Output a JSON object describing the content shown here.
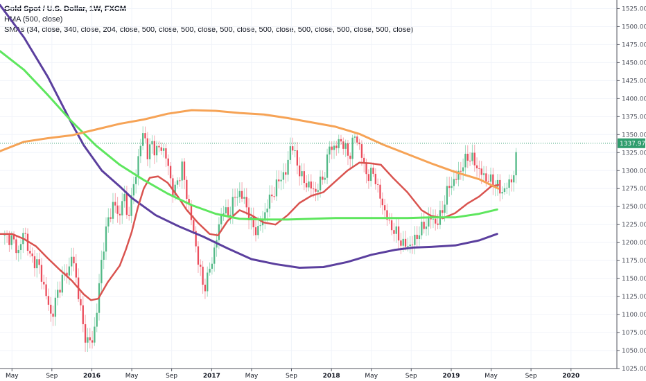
{
  "legend": {
    "title": "Gold Spot / U.S. Dollar, 1W, FXCM",
    "line2": "HMA (500, close)",
    "line3": "SMAs (34, close, 340, close, 204, close, 500, close, 500, close, 500, close, 500, close, 500, close, 500, close, 500, close)"
  },
  "colors": {
    "up": "#53b987",
    "down": "#eb4d5c",
    "wick_up": "#9fdcc0",
    "wick_down": "#f4a6ae",
    "hma": "#5b3f9e",
    "sma34": "#d9534f",
    "sma204": "#5ee65e",
    "sma340": "#f6a356",
    "price_tag": "#2f9d6d"
  },
  "price_label": "1337.97",
  "chart_data": {
    "type": "line",
    "title": "Gold Spot / U.S. Dollar, 1W, FXCM",
    "y_axis_side": "right",
    "ylim": [
      1025,
      1537
    ],
    "y_ticks": [
      "1025.00",
      "1050.00",
      "1075.00",
      "1100.00",
      "1125.00",
      "1150.00",
      "1175.00",
      "1200.00",
      "1225.00",
      "1250.00",
      "1275.00",
      "1300.00",
      "1325.00",
      "1350.00",
      "1375.00",
      "1400.00",
      "1425.00",
      "1450.00",
      "1475.00",
      "1500.00",
      "1525.00"
    ],
    "x_ticks": [
      {
        "label": "May",
        "t": 0.0
      },
      {
        "label": "Sep",
        "t": 0.333
      },
      {
        "label": "2016",
        "t": 0.667
      },
      {
        "label": "May",
        "t": 1.0
      },
      {
        "label": "Sep",
        "t": 1.333
      },
      {
        "label": "2017",
        "t": 1.667
      },
      {
        "label": "May",
        "t": 2.0
      },
      {
        "label": "Sep",
        "t": 2.333
      },
      {
        "label": "2018",
        "t": 2.667
      },
      {
        "label": "May",
        "t": 3.0
      },
      {
        "label": "Sep",
        "t": 3.333
      },
      {
        "label": "2019",
        "t": 3.667
      },
      {
        "label": "May",
        "t": 4.0
      },
      {
        "label": "Sep",
        "t": 4.333
      },
      {
        "label": "2020",
        "t": 4.667
      }
    ],
    "x_domain": [
      -0.1,
      5.05
    ],
    "last_price": 1337.97,
    "close_anchors": [
      [
        -0.08,
        1210
      ],
      [
        0.0,
        1205
      ],
      [
        0.06,
        1185
      ],
      [
        0.1,
        1220
      ],
      [
        0.15,
        1180
      ],
      [
        0.22,
        1170
      ],
      [
        0.28,
        1130
      ],
      [
        0.33,
        1095
      ],
      [
        0.38,
        1130
      ],
      [
        0.42,
        1150
      ],
      [
        0.48,
        1165
      ],
      [
        0.5,
        1185
      ],
      [
        0.55,
        1135
      ],
      [
        0.6,
        1075
      ],
      [
        0.64,
        1060
      ],
      [
        0.67,
        1065
      ],
      [
        0.7,
        1090
      ],
      [
        0.75,
        1180
      ],
      [
        0.8,
        1230
      ],
      [
        0.85,
        1255
      ],
      [
        0.9,
        1235
      ],
      [
        0.93,
        1275
      ],
      [
        0.96,
        1235
      ],
      [
        1.0,
        1260
      ],
      [
        1.03,
        1295
      ],
      [
        1.06,
        1320
      ],
      [
        1.1,
        1360
      ],
      [
        1.13,
        1320
      ],
      [
        1.17,
        1340
      ],
      [
        1.2,
        1325
      ],
      [
        1.25,
        1335
      ],
      [
        1.3,
        1310
      ],
      [
        1.35,
        1265
      ],
      [
        1.38,
        1285
      ],
      [
        1.42,
        1305
      ],
      [
        1.46,
        1265
      ],
      [
        1.5,
        1230
      ],
      [
        1.55,
        1180
      ],
      [
        1.6,
        1135
      ],
      [
        1.63,
        1150
      ],
      [
        1.67,
        1175
      ],
      [
        1.72,
        1215
      ],
      [
        1.76,
        1250
      ],
      [
        1.8,
        1235
      ],
      [
        1.85,
        1260
      ],
      [
        1.9,
        1270
      ],
      [
        1.95,
        1255
      ],
      [
        2.0,
        1225
      ],
      [
        2.05,
        1215
      ],
      [
        2.1,
        1235
      ],
      [
        2.15,
        1260
      ],
      [
        2.2,
        1275
      ],
      [
        2.25,
        1295
      ],
      [
        2.28,
        1290
      ],
      [
        2.33,
        1340
      ],
      [
        2.38,
        1310
      ],
      [
        2.43,
        1285
      ],
      [
        2.48,
        1280
      ],
      [
        2.53,
        1270
      ],
      [
        2.58,
        1285
      ],
      [
        2.62,
        1300
      ],
      [
        2.65,
        1335
      ],
      [
        2.7,
        1330
      ],
      [
        2.74,
        1345
      ],
      [
        2.78,
        1330
      ],
      [
        2.82,
        1320
      ],
      [
        2.86,
        1350
      ],
      [
        2.9,
        1335
      ],
      [
        2.94,
        1305
      ],
      [
        2.98,
        1290
      ],
      [
        3.02,
        1300
      ],
      [
        3.05,
        1275
      ],
      [
        3.1,
        1250
      ],
      [
        3.15,
        1225
      ],
      [
        3.2,
        1215
      ],
      [
        3.25,
        1200
      ],
      [
        3.3,
        1195
      ],
      [
        3.35,
        1200
      ],
      [
        3.4,
        1215
      ],
      [
        3.45,
        1225
      ],
      [
        3.5,
        1235
      ],
      [
        3.55,
        1225
      ],
      [
        3.6,
        1250
      ],
      [
        3.65,
        1280
      ],
      [
        3.7,
        1285
      ],
      [
        3.72,
        1295
      ],
      [
        3.76,
        1305
      ],
      [
        3.8,
        1320
      ],
      [
        3.85,
        1315
      ],
      [
        3.9,
        1300
      ],
      [
        3.95,
        1290
      ],
      [
        4.0,
        1285
      ],
      [
        4.05,
        1280
      ],
      [
        4.08,
        1270
      ],
      [
        4.12,
        1275
      ],
      [
        4.16,
        1285
      ],
      [
        4.2,
        1300
      ],
      [
        4.22,
        1337.97
      ]
    ],
    "series": [
      {
        "name": "HMA (500, close)",
        "key": "hma",
        "points": [
          [
            -0.1,
            1530
          ],
          [
            0.1,
            1485
          ],
          [
            0.3,
            1430
          ],
          [
            0.5,
            1365
          ],
          [
            0.6,
            1335
          ],
          [
            0.75,
            1300
          ],
          [
            0.9,
            1278
          ],
          [
            1.0,
            1262
          ],
          [
            1.2,
            1238
          ],
          [
            1.4,
            1222
          ],
          [
            1.6,
            1208
          ],
          [
            1.8,
            1192
          ],
          [
            2.0,
            1177
          ],
          [
            2.2,
            1170
          ],
          [
            2.4,
            1165
          ],
          [
            2.6,
            1166
          ],
          [
            2.8,
            1173
          ],
          [
            3.0,
            1183
          ],
          [
            3.2,
            1190
          ],
          [
            3.35,
            1193
          ],
          [
            3.5,
            1194
          ],
          [
            3.7,
            1196
          ],
          [
            3.9,
            1203
          ],
          [
            4.05,
            1212
          ]
        ]
      },
      {
        "name": "SMA 34",
        "key": "sma34",
        "points": [
          [
            -0.1,
            1212
          ],
          [
            0.0,
            1212
          ],
          [
            0.1,
            1205
          ],
          [
            0.2,
            1195
          ],
          [
            0.3,
            1178
          ],
          [
            0.4,
            1162
          ],
          [
            0.5,
            1147
          ],
          [
            0.6,
            1128
          ],
          [
            0.66,
            1120
          ],
          [
            0.72,
            1122
          ],
          [
            0.8,
            1145
          ],
          [
            0.9,
            1168
          ],
          [
            0.95,
            1190
          ],
          [
            1.0,
            1215
          ],
          [
            1.05,
            1248
          ],
          [
            1.1,
            1275
          ],
          [
            1.15,
            1290
          ],
          [
            1.22,
            1292
          ],
          [
            1.3,
            1283
          ],
          [
            1.38,
            1265
          ],
          [
            1.46,
            1245
          ],
          [
            1.55,
            1228
          ],
          [
            1.65,
            1212
          ],
          [
            1.72,
            1210
          ],
          [
            1.8,
            1230
          ],
          [
            1.9,
            1245
          ],
          [
            2.0,
            1238
          ],
          [
            2.1,
            1228
          ],
          [
            2.2,
            1225
          ],
          [
            2.3,
            1238
          ],
          [
            2.4,
            1255
          ],
          [
            2.5,
            1265
          ],
          [
            2.6,
            1270
          ],
          [
            2.7,
            1285
          ],
          [
            2.8,
            1300
          ],
          [
            2.9,
            1311
          ],
          [
            3.0,
            1310
          ],
          [
            3.08,
            1308
          ],
          [
            3.18,
            1290
          ],
          [
            3.3,
            1270
          ],
          [
            3.42,
            1245
          ],
          [
            3.5,
            1237
          ],
          [
            3.6,
            1234
          ],
          [
            3.7,
            1241
          ],
          [
            3.8,
            1254
          ],
          [
            3.9,
            1264
          ],
          [
            4.0,
            1278
          ],
          [
            4.06,
            1280
          ]
        ]
      },
      {
        "name": "SMA 204",
        "key": "sma204",
        "points": [
          [
            -0.1,
            1466
          ],
          [
            0.1,
            1440
          ],
          [
            0.3,
            1405
          ],
          [
            0.5,
            1368
          ],
          [
            0.7,
            1335
          ],
          [
            0.9,
            1308
          ],
          [
            1.1,
            1287
          ],
          [
            1.3,
            1268
          ],
          [
            1.5,
            1252
          ],
          [
            1.7,
            1240
          ],
          [
            1.9,
            1233
          ],
          [
            2.1,
            1232
          ],
          [
            2.3,
            1232
          ],
          [
            2.5,
            1233
          ],
          [
            2.7,
            1234
          ],
          [
            2.9,
            1234
          ],
          [
            3.1,
            1234
          ],
          [
            3.3,
            1234
          ],
          [
            3.5,
            1235
          ],
          [
            3.7,
            1235
          ],
          [
            3.9,
            1240
          ],
          [
            4.05,
            1246
          ]
        ]
      },
      {
        "name": "SMA 340",
        "key": "sma340",
        "points": [
          [
            -0.1,
            1327
          ],
          [
            0.1,
            1340
          ],
          [
            0.3,
            1345
          ],
          [
            0.5,
            1349
          ],
          [
            0.7,
            1357
          ],
          [
            0.9,
            1365
          ],
          [
            1.1,
            1371
          ],
          [
            1.3,
            1379
          ],
          [
            1.5,
            1384
          ],
          [
            1.7,
            1383
          ],
          [
            1.9,
            1380
          ],
          [
            2.1,
            1378
          ],
          [
            2.3,
            1373
          ],
          [
            2.5,
            1367
          ],
          [
            2.7,
            1361
          ],
          [
            2.9,
            1351
          ],
          [
            3.1,
            1336
          ],
          [
            3.3,
            1323
          ],
          [
            3.5,
            1310
          ],
          [
            3.7,
            1298
          ],
          [
            3.9,
            1288
          ],
          [
            4.06,
            1275
          ]
        ]
      }
    ]
  }
}
